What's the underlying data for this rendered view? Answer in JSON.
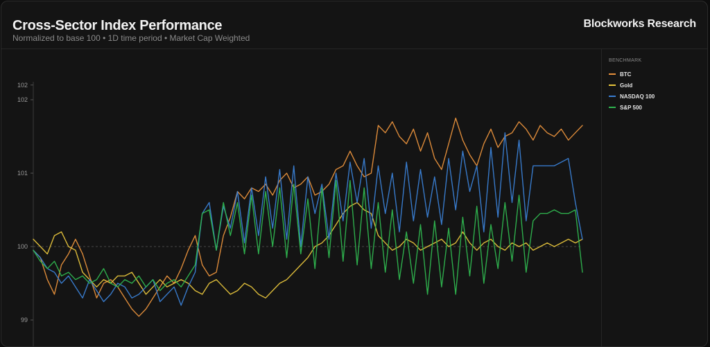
{
  "header": {
    "title": "Cross-Sector Index Performance",
    "subtitle": "Normalized to base 100 • 1D time period • Market Cap Weighted",
    "brand": "Blockworks Research"
  },
  "legend": {
    "title": "BENCHMARK",
    "items": [
      {
        "label": "BTC",
        "color": "#e8913c"
      },
      {
        "label": "Gold",
        "color": "#e8c53c"
      },
      {
        "label": "NASDAQ 100",
        "color": "#3a7fd4"
      },
      {
        "label": "S&P 500",
        "color": "#2fb64f"
      }
    ]
  },
  "chart_data": {
    "type": "line",
    "ylim": [
      98.8,
      102.2
    ],
    "yticks": [
      "102",
      "102",
      "101",
      "100",
      "99"
    ],
    "baseline": 100,
    "series": [
      {
        "name": "BTC",
        "color": "#e8913c",
        "values": [
          99.95,
          99.85,
          99.55,
          99.35,
          99.75,
          99.9,
          100.1,
          99.9,
          99.6,
          99.3,
          99.5,
          99.55,
          99.45,
          99.3,
          99.15,
          99.05,
          99.15,
          99.3,
          99.45,
          99.6,
          99.5,
          99.7,
          99.95,
          100.15,
          99.75,
          99.6,
          99.65,
          100.15,
          100.4,
          100.75,
          100.65,
          100.8,
          100.75,
          100.85,
          100.7,
          100.9,
          101.0,
          100.8,
          100.85,
          100.95,
          100.7,
          100.75,
          100.85,
          101.05,
          101.1,
          101.3,
          101.1,
          100.95,
          101.0,
          101.65,
          101.55,
          101.7,
          101.5,
          101.4,
          101.6,
          101.3,
          101.55,
          101.2,
          101.05,
          101.4,
          101.75,
          101.45,
          101.25,
          101.1,
          101.4,
          101.6,
          101.35,
          101.5,
          101.55,
          101.7,
          101.6,
          101.45,
          101.65,
          101.55,
          101.5,
          101.6,
          101.45,
          101.55,
          101.65
        ]
      },
      {
        "name": "Gold",
        "color": "#e8c53c",
        "values": [
          100.1,
          100.0,
          99.9,
          100.15,
          100.2,
          100.0,
          99.95,
          99.65,
          99.55,
          99.45,
          99.55,
          99.5,
          99.6,
          99.6,
          99.65,
          99.5,
          99.35,
          99.45,
          99.55,
          99.45,
          99.5,
          99.55,
          99.5,
          99.4,
          99.35,
          99.5,
          99.55,
          99.45,
          99.35,
          99.4,
          99.5,
          99.45,
          99.35,
          99.3,
          99.4,
          99.5,
          99.55,
          99.65,
          99.75,
          99.85,
          100.0,
          100.05,
          100.15,
          100.3,
          100.45,
          100.55,
          100.6,
          100.5,
          100.45,
          100.15,
          100.05,
          99.95,
          100.0,
          100.1,
          100.05,
          99.95,
          100.0,
          100.05,
          100.1,
          100.0,
          100.05,
          100.2,
          100.05,
          99.95,
          100.05,
          100.1,
          100.0,
          99.95,
          100.05,
          100.0,
          100.05,
          99.95,
          100.0,
          100.05,
          100.0,
          100.05,
          100.1,
          100.05,
          100.1
        ]
      },
      {
        "name": "NASDAQ 100",
        "color": "#3a7fd4",
        "values": [
          99.95,
          99.85,
          99.7,
          99.65,
          99.5,
          99.6,
          99.45,
          99.3,
          99.55,
          99.4,
          99.25,
          99.35,
          99.5,
          99.45,
          99.3,
          99.35,
          99.45,
          99.55,
          99.25,
          99.35,
          99.45,
          99.2,
          99.45,
          99.65,
          100.45,
          100.6,
          99.95,
          100.55,
          100.25,
          100.75,
          100.05,
          100.8,
          100.15,
          100.95,
          100.25,
          101.05,
          100.1,
          101.1,
          100.0,
          100.95,
          100.45,
          100.85,
          100.1,
          101.0,
          100.35,
          101.15,
          100.6,
          101.2,
          100.25,
          101.1,
          100.45,
          101.0,
          100.2,
          101.15,
          100.35,
          101.05,
          100.4,
          100.95,
          100.3,
          101.2,
          100.5,
          101.3,
          100.75,
          101.1,
          100.2,
          101.35,
          100.4,
          101.55,
          100.6,
          101.45,
          100.35,
          101.1,
          101.1,
          101.1,
          101.1,
          101.15,
          101.2,
          100.6,
          100.1
        ]
      },
      {
        "name": "S&P 500",
        "color": "#2fb64f",
        "values": [
          99.95,
          99.8,
          99.7,
          99.8,
          99.6,
          99.65,
          99.55,
          99.6,
          99.5,
          99.55,
          99.7,
          99.5,
          99.45,
          99.55,
          99.5,
          99.6,
          99.45,
          99.55,
          99.4,
          99.5,
          99.55,
          99.45,
          99.6,
          99.75,
          100.45,
          100.5,
          99.95,
          100.6,
          100.15,
          100.6,
          99.9,
          100.7,
          99.9,
          100.75,
          100.0,
          100.8,
          99.85,
          100.85,
          99.9,
          100.65,
          99.7,
          100.8,
          99.85,
          100.9,
          99.8,
          100.9,
          99.75,
          100.8,
          99.7,
          100.6,
          99.65,
          100.5,
          99.55,
          100.2,
          99.5,
          100.3,
          99.35,
          100.35,
          99.45,
          100.25,
          99.35,
          100.4,
          99.6,
          100.55,
          99.5,
          100.3,
          99.7,
          100.6,
          99.8,
          100.7,
          99.65,
          100.35,
          100.45,
          100.45,
          100.5,
          100.45,
          100.45,
          100.5,
          99.65
        ]
      }
    ]
  }
}
